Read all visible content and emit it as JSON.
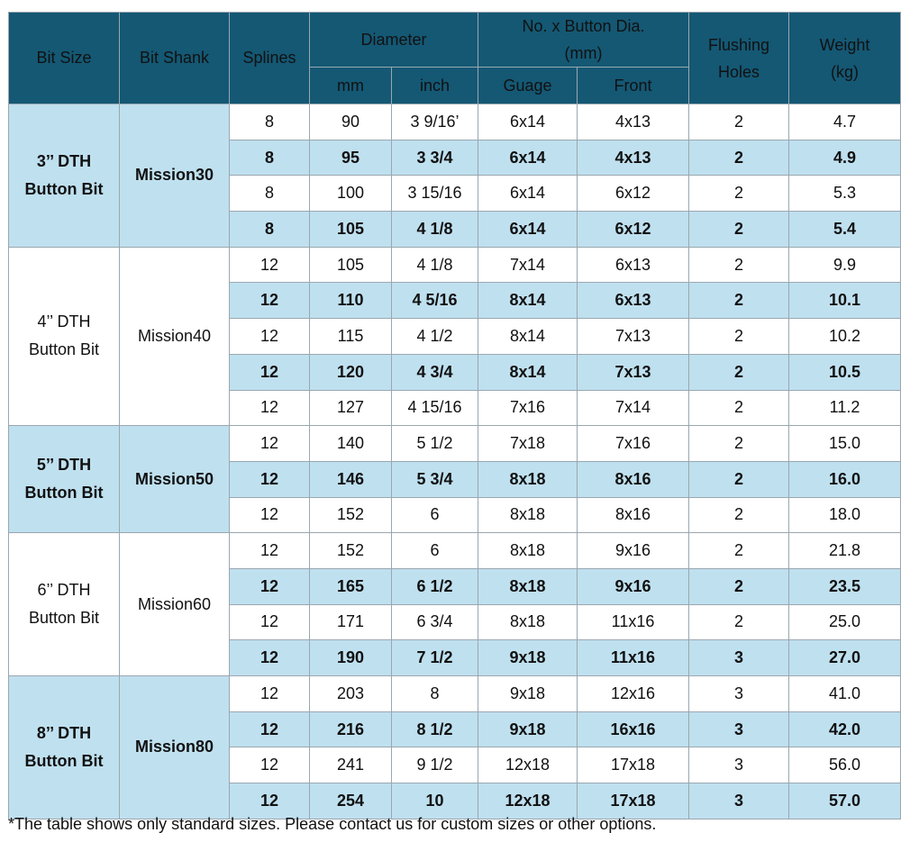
{
  "header": {
    "bit_size": "Bit Size",
    "bit_shank": "Bit Shank",
    "splines": "Splines",
    "diameter": "Diameter",
    "diameter_mm": "mm",
    "diameter_inch": "inch",
    "buttons_line1": "No. x Button Dia.",
    "buttons_line2": "(mm)",
    "gauge": "Guage",
    "front": "Front",
    "flushing_line1": "Flushing",
    "flushing_line2": "Holes",
    "weight_line1": "Weight",
    "weight_line2": "(kg)"
  },
  "groups": [
    {
      "size_line1": "3’’ DTH",
      "size_line2": "Button Bit",
      "shank": "Mission30",
      "rows": [
        [
          "8",
          "90",
          "3 9/16’",
          "6x14",
          "4x13",
          "2",
          "4.7"
        ],
        [
          "8",
          "95",
          "3 3/4",
          "6x14",
          "4x13",
          "2",
          "4.9"
        ],
        [
          "8",
          "100",
          "3 15/16",
          "6x14",
          "6x12",
          "2",
          "5.3"
        ],
        [
          "8",
          "105",
          "4 1/8",
          "6x14",
          "6x12",
          "2",
          "5.4"
        ]
      ]
    },
    {
      "size_line1": "4’’ DTH",
      "size_line2": "Button Bit",
      "shank": "Mission40",
      "rows": [
        [
          "12",
          "105",
          "4 1/8",
          "7x14",
          "6x13",
          "2",
          "9.9"
        ],
        [
          "12",
          "110",
          "4 5/16",
          "8x14",
          "6x13",
          "2",
          "10.1"
        ],
        [
          "12",
          "115",
          "4 1/2",
          "8x14",
          "7x13",
          "2",
          "10.2"
        ],
        [
          "12",
          "120",
          "4 3/4",
          "8x14",
          "7x13",
          "2",
          "10.5"
        ],
        [
          "12",
          "127",
          "4 15/16",
          "7x16",
          "7x14",
          "2",
          "11.2"
        ]
      ]
    },
    {
      "size_line1": "5’’ DTH",
      "size_line2": "Button Bit",
      "shank": "Mission50",
      "rows": [
        [
          "12",
          "140",
          "5 1/2",
          "7x18",
          "7x16",
          "2",
          "15.0"
        ],
        [
          "12",
          "146",
          "5 3/4",
          "8x18",
          "8x16",
          "2",
          "16.0"
        ],
        [
          "12",
          "152",
          "6",
          "8x18",
          "8x16",
          "2",
          "18.0"
        ]
      ]
    },
    {
      "size_line1": "6’’ DTH",
      "size_line2": "Button Bit",
      "shank": "Mission60",
      "rows": [
        [
          "12",
          "152",
          "6",
          "8x18",
          "9x16",
          "2",
          "21.8"
        ],
        [
          "12",
          "165",
          "6 1/2",
          "8x18",
          "9x16",
          "2",
          "23.5"
        ],
        [
          "12",
          "171",
          "6 3/4",
          "8x18",
          "11x16",
          "2",
          "25.0"
        ],
        [
          "12",
          "190",
          "7 1/2",
          "9x18",
          "11x16",
          "3",
          "27.0"
        ]
      ]
    },
    {
      "size_line1": "8’’ DTH",
      "size_line2": "Button Bit",
      "shank": "Mission80",
      "rows": [
        [
          "12",
          "203",
          "8",
          "9x18",
          "12x16",
          "3",
          "41.0"
        ],
        [
          "12",
          "216",
          "8 1/2",
          "9x18",
          "16x16",
          "3",
          "42.0"
        ],
        [
          "12",
          "241",
          "9 1/2",
          "12x18",
          "17x18",
          "3",
          "56.0"
        ],
        [
          "12",
          "254",
          "10",
          "12x18",
          "17x18",
          "3",
          "57.0"
        ]
      ]
    }
  ],
  "footnote": "*The table shows only standard sizes. Please contact us for custom sizes or other options.",
  "colors": {
    "header_bg": "#145874",
    "row_highlight": "#bfe0ef"
  }
}
